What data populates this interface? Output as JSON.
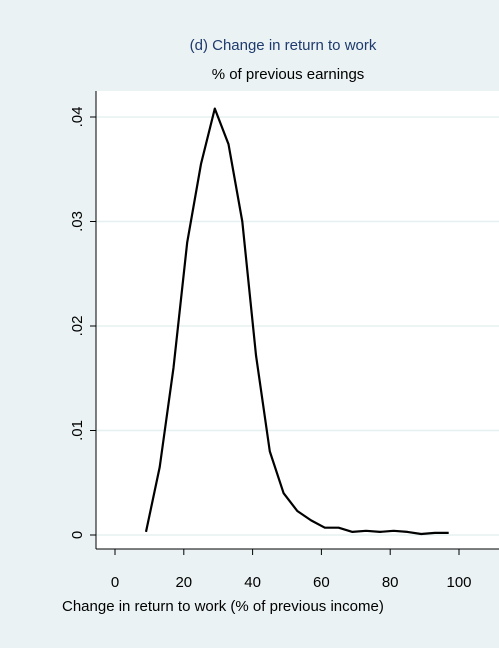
{
  "chart_data": {
    "type": "line",
    "title": "(d) Change in return to work",
    "subtitle": "% of previous earnings",
    "xlabel": "Change in return to work (% of previous income)",
    "ylabel": "",
    "xlim": [
      0,
      100
    ],
    "ylim": [
      0,
      0.04
    ],
    "xticks": [
      "0",
      "20",
      "40",
      "60",
      "80",
      "100"
    ],
    "yticks": [
      "0",
      ".01",
      ".02",
      ".03",
      ".04"
    ],
    "grid": true,
    "series": [
      {
        "color": "#000000",
        "x": [
          9,
          13,
          17,
          21,
          25,
          29,
          33,
          37,
          41,
          45,
          49,
          53,
          57,
          61,
          65,
          69,
          73,
          77,
          81,
          85,
          89,
          93,
          97
        ],
        "y": [
          0.0003,
          0.0065,
          0.016,
          0.028,
          0.0355,
          0.0408,
          0.0374,
          0.03,
          0.0172,
          0.008,
          0.004,
          0.0023,
          0.0014,
          0.0007,
          0.0007,
          0.0003,
          0.0004,
          0.0003,
          0.0004,
          0.0003,
          0.0001,
          0.0002,
          0.0002
        ]
      }
    ]
  },
  "colors": {
    "background": "#eaf2f3",
    "plot_area": "#ffffff",
    "gridline": "#e6f0f0",
    "title": "#1e3a6e",
    "line": "#000000"
  }
}
